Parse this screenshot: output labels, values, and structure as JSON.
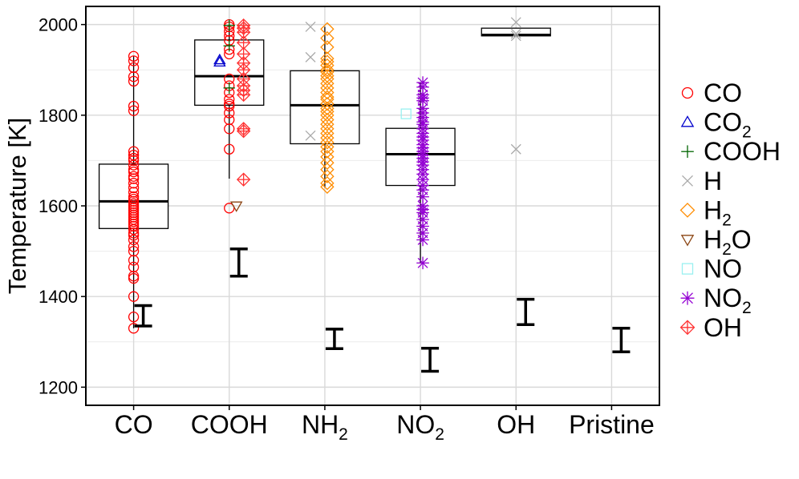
{
  "chart_data": {
    "type": "box",
    "title": "",
    "xlabel": "",
    "ylabel": "Temperature [K]",
    "ylim": [
      1160,
      2040
    ],
    "yticks": [
      1200,
      1400,
      1600,
      1800,
      2000
    ],
    "grid": true,
    "legend_position": "right",
    "categories": [
      {
        "base": "CO",
        "sub": ""
      },
      {
        "base": "COOH",
        "sub": ""
      },
      {
        "base": "NH",
        "sub": "2"
      },
      {
        "base": "NO",
        "sub": "2"
      },
      {
        "base": "OH",
        "sub": ""
      },
      {
        "base": "Pristine",
        "sub": ""
      }
    ],
    "boxes": [
      {
        "q1": 1550,
        "median": 1610,
        "q3": 1692,
        "whisker_low": 1330,
        "whisker_high": 1930
      },
      {
        "q1": 1822,
        "median": 1886,
        "q3": 1966,
        "whisker_low": 1660,
        "whisker_high": 2000
      },
      {
        "q1": 1737,
        "median": 1822,
        "q3": 1898,
        "whisker_low": 1640,
        "whisker_high": 1995
      },
      {
        "q1": 1645,
        "median": 1714,
        "q3": 1771,
        "whisker_low": 1474,
        "whisker_high": 1872
      },
      {
        "q1": 1975,
        "median": 1977,
        "q3": 1992,
        "whisker_low": 1975,
        "whisker_high": 1992
      },
      null
    ],
    "error_bars": [
      {
        "low": 1335,
        "high": 1380
      },
      {
        "low": 1445,
        "high": 1505
      },
      {
        "low": 1285,
        "high": 1328
      },
      {
        "low": 1235,
        "high": 1286
      },
      {
        "low": 1338,
        "high": 1394
      },
      {
        "low": 1278,
        "high": 1330
      }
    ],
    "legend": [
      {
        "base": "CO",
        "sub": "",
        "sub_pos": "",
        "color": "#ff0000",
        "marker": "circle"
      },
      {
        "base": "CO",
        "sub": "2",
        "sub_pos": "",
        "color": "#0000cc",
        "marker": "triangle-up"
      },
      {
        "base": "COOH",
        "sub": "",
        "sub_pos": "",
        "color": "#006400",
        "marker": "plus"
      },
      {
        "base": "H",
        "sub": "",
        "sub_pos": "",
        "color": "#aaaaaa",
        "marker": "cross"
      },
      {
        "base": "H",
        "sub": "2",
        "sub_pos": "",
        "color": "#ff8c00",
        "marker": "diamond"
      },
      {
        "base": "H",
        "sub": "2",
        "sub_pos": "O",
        "color": "#8b4513",
        "marker": "triangle-down"
      },
      {
        "base": "NO",
        "sub": "",
        "sub_pos": "",
        "color": "#99f0f0",
        "marker": "square"
      },
      {
        "base": "NO",
        "sub": "2",
        "sub_pos": "",
        "color": "#9400d3",
        "marker": "asterisk"
      },
      {
        "base": "OH",
        "sub": "",
        "sub_pos": "",
        "color": "#ff3333",
        "marker": "crossed-diamond"
      }
    ],
    "series": [
      {
        "name": "CO",
        "category": 0,
        "marker": "circle",
        "color": "#ff0000",
        "values": [
          1930,
          1920,
          1905,
          1885,
          1875,
          1820,
          1810,
          1720,
          1712,
          1705,
          1700,
          1690,
          1680,
          1675,
          1665,
          1660,
          1650,
          1640,
          1630,
          1620,
          1615,
          1610,
          1605,
          1600,
          1595,
          1590,
          1585,
          1580,
          1575,
          1570,
          1565,
          1560,
          1555,
          1548,
          1540,
          1535,
          1525,
          1510,
          1500,
          1480,
          1465,
          1445,
          1440,
          1400,
          1355,
          1330
        ]
      },
      {
        "name": "CO",
        "category": 1,
        "marker": "circle",
        "color": "#ff0000",
        "values": [
          2000,
          1995,
          1985,
          1975,
          1965,
          1945,
          1935,
          1880,
          1865,
          1850,
          1835,
          1825,
          1820,
          1805,
          1790,
          1770,
          1725,
          1595
        ]
      },
      {
        "name": "CO2",
        "category": 1,
        "marker": "triangle-up",
        "color": "#0000cc",
        "offset": -0.2,
        "values": [
          1922,
          1917
        ]
      },
      {
        "name": "COOH",
        "category": 1,
        "marker": "plus",
        "color": "#006400",
        "values": [
          1998,
          1953,
          1860
        ]
      },
      {
        "name": "H2O",
        "category": 1,
        "marker": "triangle-down",
        "color": "#8b4513",
        "offset": 0.15,
        "values": [
          1600
        ]
      },
      {
        "name": "OH",
        "category": 1,
        "marker": "crossed-diamond",
        "color": "#ff3333",
        "offset": 0.3,
        "values": [
          1998,
          1992,
          1983,
          1960,
          1935,
          1915,
          1900,
          1880,
          1865,
          1855,
          1845,
          1770,
          1765,
          1658
        ]
      },
      {
        "name": "H",
        "category": 2,
        "marker": "cross",
        "color": "#aaaaaa",
        "offset": -0.3,
        "values": [
          1995,
          1928,
          1755
        ]
      },
      {
        "name": "H2",
        "category": 2,
        "marker": "diamond",
        "color": "#ff8c00",
        "offset": 0.05,
        "values": [
          1990,
          1970,
          1950,
          1925,
          1918,
          1910,
          1900,
          1895,
          1887,
          1880,
          1870,
          1860,
          1850,
          1840,
          1835,
          1825,
          1815,
          1808,
          1800,
          1790,
          1780,
          1770,
          1760,
          1750,
          1740,
          1730,
          1720,
          1708,
          1695,
          1680,
          1665,
          1650,
          1642
        ]
      },
      {
        "name": "NO",
        "category": 3,
        "marker": "square",
        "color": "#99f0f0",
        "offset": -0.3,
        "values": [
          1803
        ]
      },
      {
        "name": "NO2",
        "category": 3,
        "marker": "asterisk",
        "color": "#9400d3",
        "offset": 0.05,
        "values": [
          1872,
          1862,
          1845,
          1838,
          1832,
          1815,
          1805,
          1795,
          1785,
          1780,
          1770,
          1760,
          1752,
          1745,
          1735,
          1728,
          1720,
          1712,
          1705,
          1697,
          1690,
          1680,
          1670,
          1658,
          1645,
          1635,
          1620,
          1600,
          1592,
          1585,
          1570,
          1555,
          1540,
          1525,
          1474
        ]
      },
      {
        "name": "H",
        "category": 4,
        "marker": "cross",
        "color": "#aaaaaa",
        "values": [
          2005,
          1980,
          1975,
          1725
        ]
      }
    ]
  }
}
